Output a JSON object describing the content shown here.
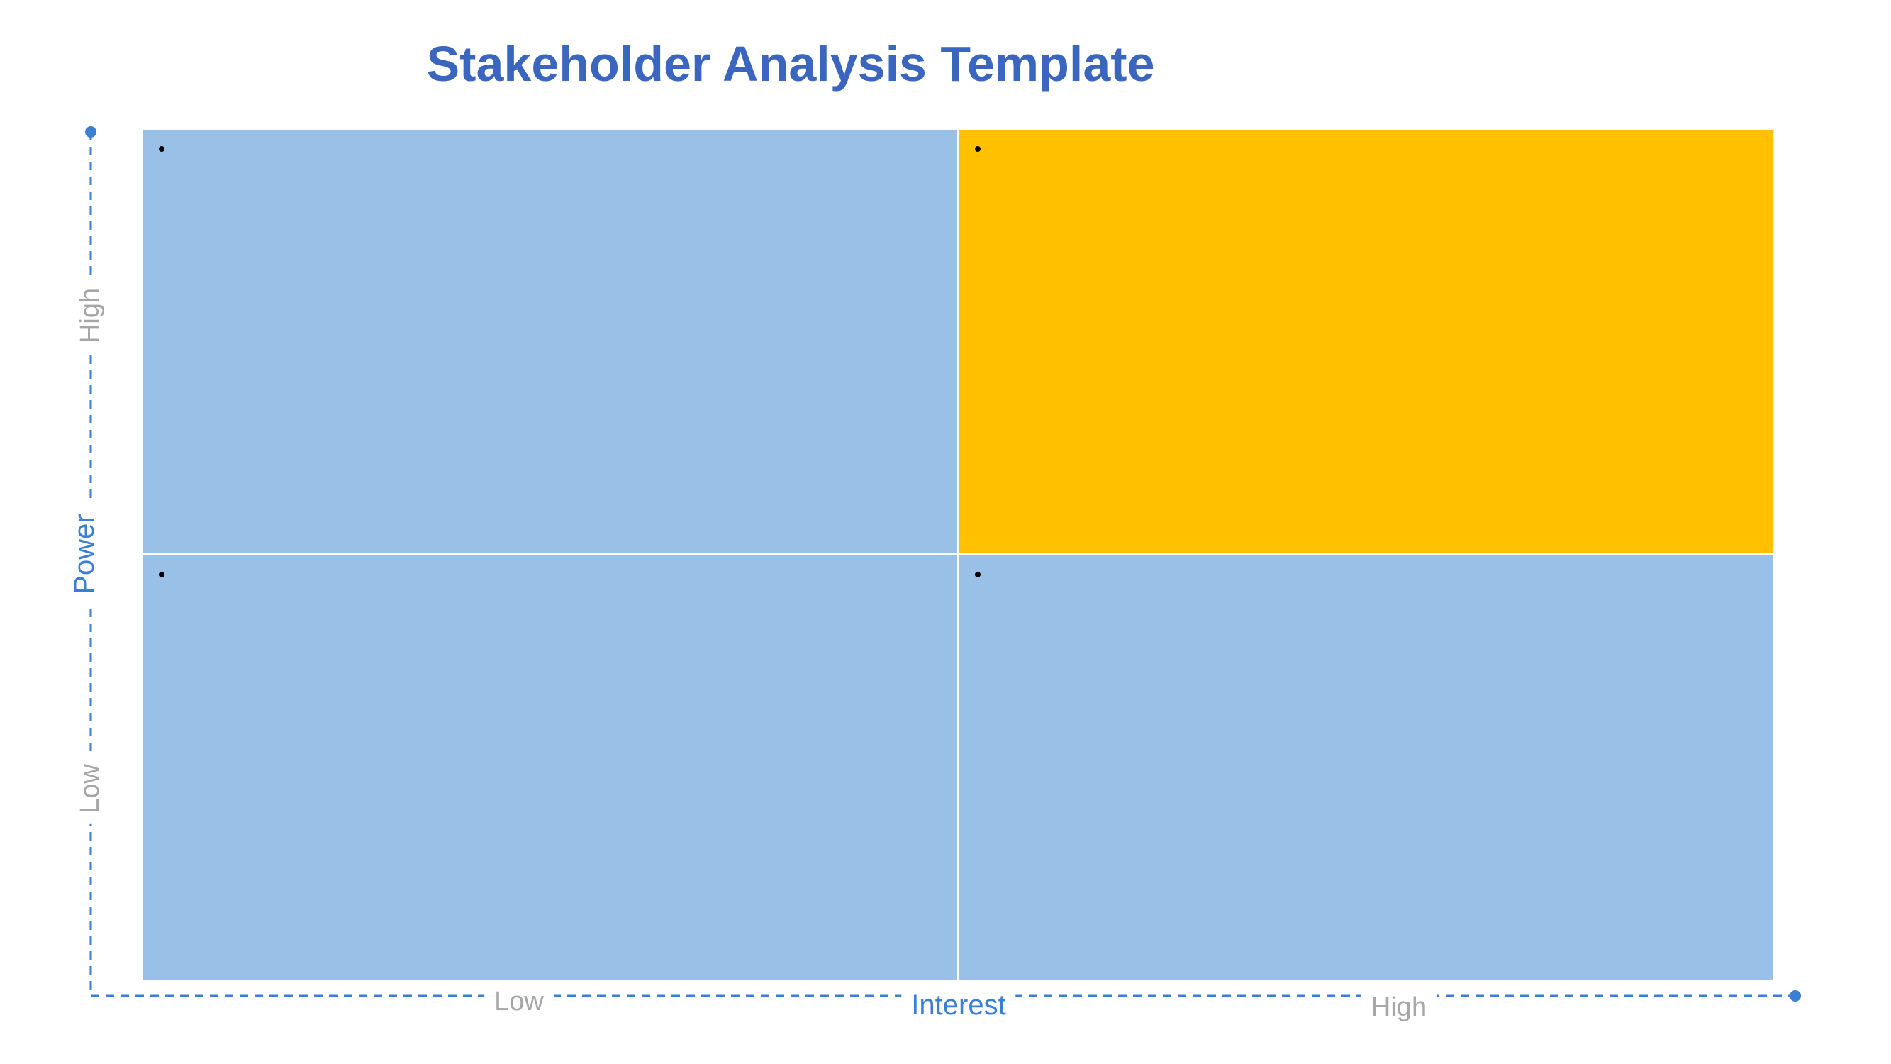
{
  "title": "Stakeholder Analysis Template",
  "colors": {
    "title": "#3a66bf",
    "quadrant_blue": "#99c1e8",
    "quadrant_highlight": "#ffc000",
    "axis": "#3a7fd5",
    "axis_level_text": "#a6a6a6",
    "bullet": "#000000"
  },
  "quadrants": [
    {
      "id": "top-left",
      "power": "High",
      "interest": "Low",
      "color": "#99c1e8",
      "items": [
        ""
      ]
    },
    {
      "id": "top-right",
      "power": "High",
      "interest": "High",
      "color": "#ffc000",
      "items": [
        ""
      ]
    },
    {
      "id": "bottom-left",
      "power": "Low",
      "interest": "Low",
      "color": "#99c1e8",
      "items": [
        ""
      ]
    },
    {
      "id": "bottom-right",
      "power": "Low",
      "interest": "High",
      "color": "#99c1e8",
      "items": [
        ""
      ]
    }
  ],
  "x_axis": {
    "label": "Interest",
    "low": "Low",
    "high": "High"
  },
  "y_axis": {
    "label": "Power",
    "low": "Low",
    "high": "High"
  }
}
